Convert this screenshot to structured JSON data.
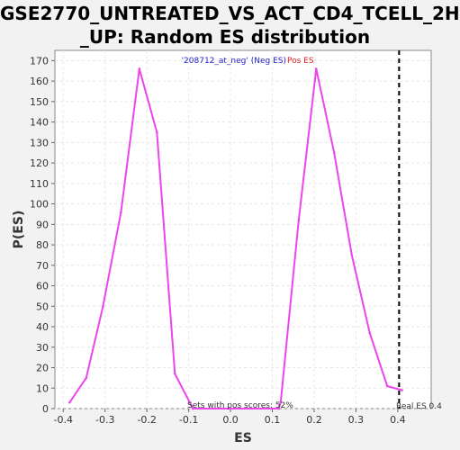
{
  "chart_data": {
    "type": "line",
    "title_line1": "GSE2770_UNTREATED_VS_ACT_CD4_TCELL_2H",
    "title_line2": "_UP: Random ES distribution",
    "xlabel": "ES",
    "ylabel": "P(ES)",
    "xlim": [
      -0.42,
      0.48
    ],
    "ylim": [
      0,
      175
    ],
    "x_ticks": [
      -0.4,
      -0.3,
      -0.2,
      -0.1,
      0.0,
      0.1,
      0.2,
      0.3,
      0.4
    ],
    "x_tick_labels": [
      "-0.4",
      "-0.3",
      "-0.2",
      "-0.1",
      "0.0",
      "0.1",
      "0.2",
      "0.3",
      "0.4"
    ],
    "y_ticks": [
      0,
      10,
      20,
      30,
      40,
      50,
      60,
      70,
      80,
      90,
      100,
      110,
      120,
      130,
      140,
      150,
      160,
      170
    ],
    "grid": true,
    "legend": {
      "placement": "top-center",
      "neg_label": "'208712_at_neg' (Neg ES)",
      "pos_label": "Pos ES",
      "neg_color": "#2222cc",
      "pos_color": "#dd2222"
    },
    "series": [
      {
        "color": "#ee44ee",
        "x": [
          -0.385,
          -0.345,
          -0.305,
          -0.262,
          -0.218,
          -0.176,
          -0.133,
          -0.09,
          0.115,
          0.12,
          0.163,
          0.205,
          0.248,
          0.29,
          0.333,
          0.375,
          0.41
        ],
        "y": [
          3,
          15,
          50,
          96,
          166,
          135,
          17,
          0,
          0,
          3,
          92,
          166,
          125,
          75,
          37,
          11,
          9
        ]
      }
    ],
    "real_es": 0.4,
    "annotations": {
      "sets_pos": "Sets with pos scores: 52%",
      "real_es_label": "Real ES 0.4"
    }
  }
}
